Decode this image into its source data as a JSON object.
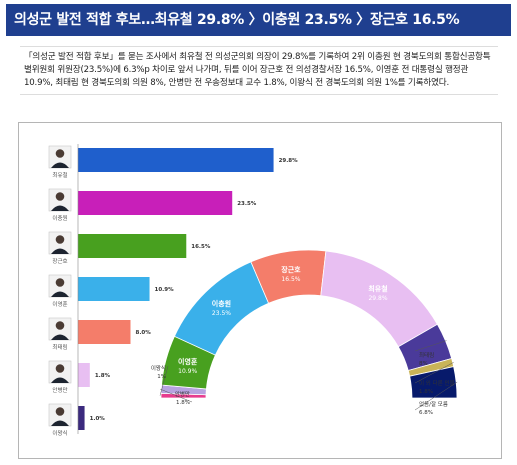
{
  "header": {
    "title": "의성군 발전 적합 후보…최유철 29.8% 〉이충원 23.5% 〉장근호 16.5%"
  },
  "intro": {
    "text": "「의성군 발전 적합 후보」를 묻는 조사에서 최유철 전 의성군의회 의장이 29.8%를 기록하여 2위 이충원 현 경북도의회 통합신공항특별위원회 위원장(23.5%)에 6.3%p 차이로 앞서 나가며, 뒤를 이어 장근호 전 의성경찰서장 16.5%, 이영훈 전 대통령실 행정관 10.9%, 최태림 현 경북도의회 의원 8%, 안병만 전 우송정보대 교수 1.8%, 이왕식 전 경북도의회 의원 1%를 기록하였다."
  },
  "chart_data": [
    {
      "type": "bar",
      "orientation": "horizontal",
      "categories": [
        "최유철",
        "이충원",
        "장근호",
        "이영훈",
        "최태림",
        "안병만",
        "이왕식"
      ],
      "values": [
        29.8,
        23.5,
        16.5,
        10.9,
        8.0,
        1.8,
        1.0
      ],
      "value_labels": [
        "29.8%",
        "23.5%",
        "16.5%",
        "10.9%",
        "8.0%",
        "1.8%",
        "1.0%"
      ],
      "colors": [
        "#1f5fcc",
        "#c81fb9",
        "#48a01f",
        "#3ab0ea",
        "#f47d6a",
        "#e8bff2",
        "#3b2a7e"
      ],
      "xlim": [
        0,
        32
      ]
    },
    {
      "type": "pie",
      "style": "semicircle-donut",
      "labels": [
        "이왕식",
        "안병만",
        "이영훈",
        "이충원",
        "장근호",
        "최유철",
        "최태림",
        "이 외 다른 인물",
        "없음/잘 모름"
      ],
      "values": [
        1,
        1.8,
        10.9,
        23.5,
        16.5,
        29.8,
        8,
        1.8,
        6.8
      ],
      "value_labels": [
        "1%",
        "1.8%",
        "10.9%",
        "23.5%",
        "16.5%",
        "29.8%",
        "8%",
        "1.8%",
        "6.8%"
      ],
      "colors": [
        "#e73c8e",
        "#b7a3e0",
        "#48a01f",
        "#3ab0ea",
        "#f47d6a",
        "#e8bff2",
        "#4a3a9a",
        "#c9b458",
        "#071a6b"
      ]
    }
  ]
}
